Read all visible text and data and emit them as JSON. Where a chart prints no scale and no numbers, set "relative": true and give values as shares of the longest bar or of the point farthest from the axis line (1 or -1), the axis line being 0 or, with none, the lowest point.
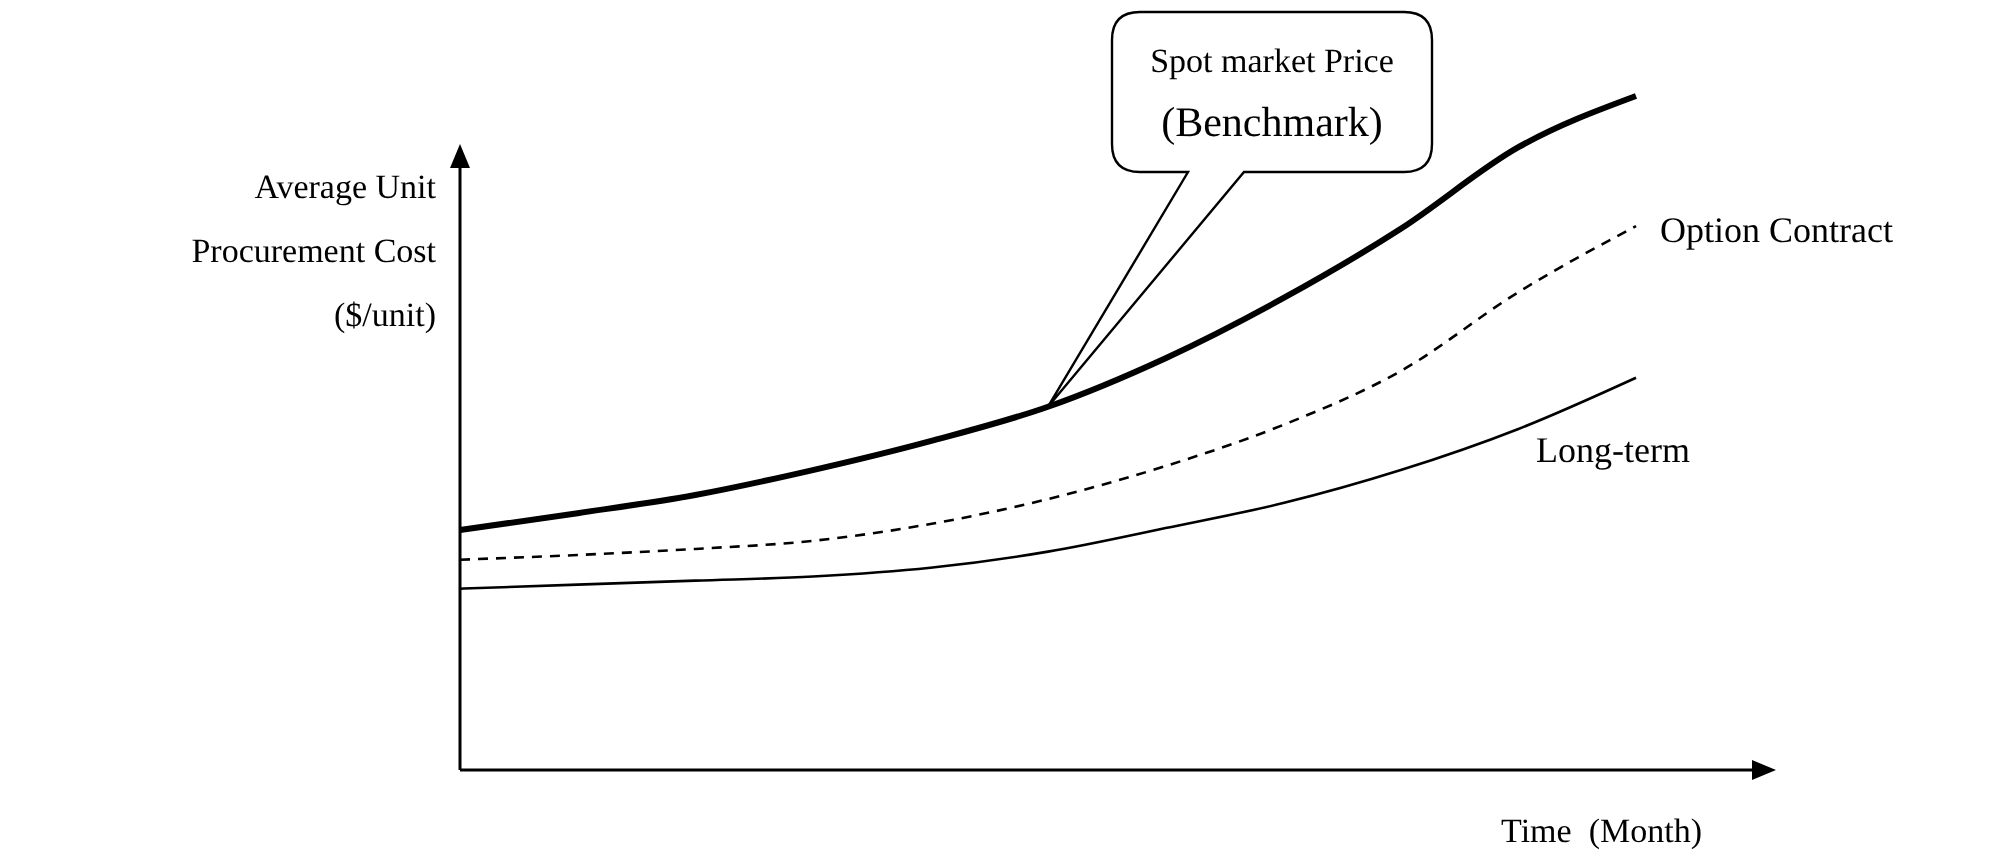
{
  "chart_data": {
    "type": "line",
    "relative": true,
    "xlabel": "Time  (Month)",
    "ylabel": "Average Unit Procurement Cost ($/unit)",
    "categories": [
      null,
      null,
      null,
      null,
      null,
      null,
      null,
      null,
      null,
      null,
      null
    ],
    "series": [
      {
        "name": "Spot market Price (Benchmark)",
        "color": "#000000",
        "line_style": "solid",
        "values": [
          0.356,
          0.381,
          0.408,
          0.445,
          0.488,
          0.539,
          0.611,
          0.7,
          0.803,
          0.924,
          1
        ]
      },
      {
        "name": "Option Contract",
        "color": "#000000",
        "line_style": "dashed",
        "values": [
          0.312,
          0.319,
          0.328,
          0.34,
          0.365,
          0.402,
          0.451,
          0.512,
          0.592,
          0.709,
          0.807
        ]
      },
      {
        "name": "Long-term",
        "color": "#000000",
        "line_style": "solid",
        "values": [
          0.269,
          0.275,
          0.281,
          0.287,
          0.3,
          0.324,
          0.359,
          0.396,
          0.445,
          0.506,
          0.582
        ]
      }
    ],
    "marker": "none"
  }
}
